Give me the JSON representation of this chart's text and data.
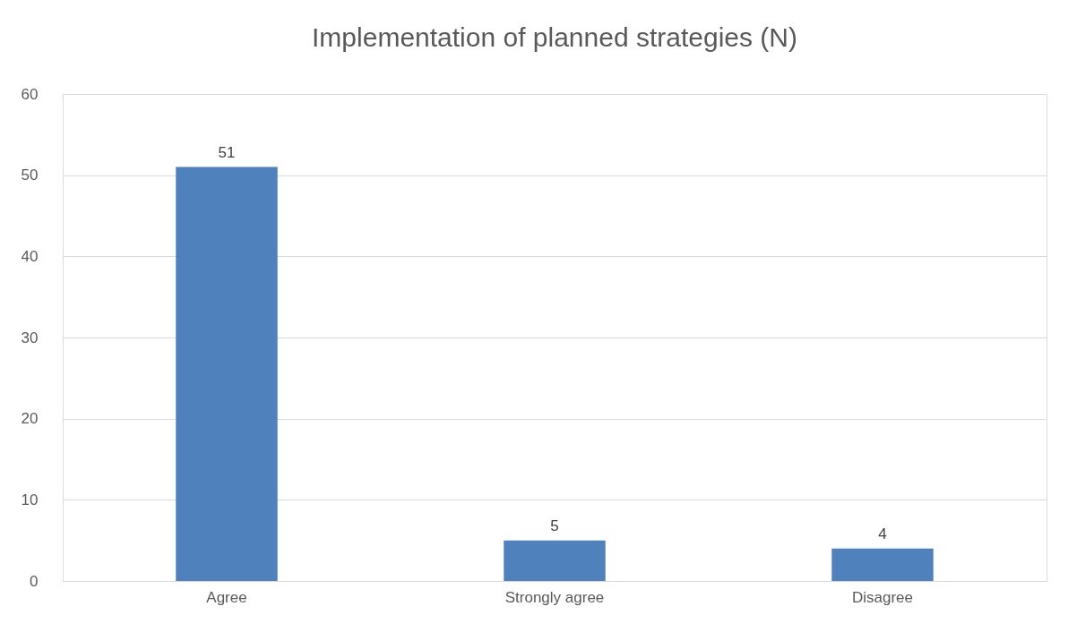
{
  "chart_data": {
    "type": "bar",
    "title": "Implementation of planned strategies (N)",
    "categories": [
      "Agree",
      "Strongly agree",
      "Disagree"
    ],
    "values": [
      51,
      5,
      4
    ],
    "color": "#4f81bd",
    "ylim": [
      0,
      60
    ],
    "yticks": [
      0,
      10,
      20,
      30,
      40,
      50,
      60
    ],
    "grid": "y",
    "data_labels": true
  }
}
